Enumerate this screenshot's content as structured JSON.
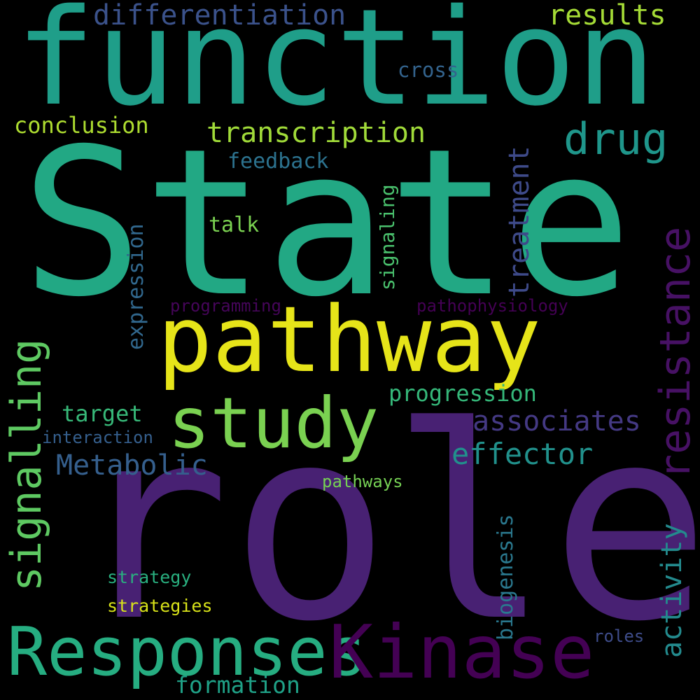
{
  "words": {
    "role": "role",
    "state": "State",
    "function": "function",
    "pathway": "pathway",
    "responses": "Responses",
    "kinase": "Kinase",
    "study": "study",
    "drug": "drug",
    "resistance": "resistance",
    "signalling": "signalling",
    "transcription": "transcription",
    "associates": "associates",
    "effector": "effector",
    "metabolic": "Metabolic",
    "differentiation": "differentiation",
    "results": "results",
    "activity": "activity",
    "treatment": "treatment",
    "formation": "formation",
    "progression": "progression",
    "conclusion": "conclusion",
    "feedback": "feedback",
    "talk": "talk",
    "cross": "cross",
    "target": "target",
    "expression": "expression",
    "biogenesis": "biogenesis",
    "signaling": "signaling",
    "programming": "programming",
    "pathophysiology": "pathophysiology",
    "interaction": "interaction",
    "pathways": "pathways",
    "strategy": "strategy",
    "strategies": "strategies",
    "roles": "roles"
  },
  "colors": {
    "background": "#000000",
    "role": "#482173",
    "state": "#22a884",
    "function": "#1f9e89",
    "pathway": "#e6e419",
    "responses": "#26ad81",
    "kinase": "#440154",
    "study": "#7ad151",
    "drug": "#1f968b",
    "resistance": "#471164",
    "signalling": "#5ec962",
    "transcription": "#a0da39",
    "associates": "#443983",
    "effector": "#21918c",
    "metabolic": "#355f8d",
    "differentiation": "#3b528b",
    "results": "#a5db36",
    "activity": "#238a8d",
    "treatment": "#3e4a89",
    "formation": "#1fa187",
    "progression": "#35b779",
    "conclusion": "#addc30",
    "feedback": "#2c728e",
    "talk": "#7ad151",
    "cross": "#33638d",
    "target": "#37b878",
    "expression": "#31688e",
    "biogenesis": "#2a788e",
    "signaling": "#4ac16d",
    "programming": "#450559",
    "pathophysiology": "#440154",
    "interaction": "#355f8d",
    "pathways": "#75d054",
    "strategy": "#29af7f",
    "strategies": "#d8e219",
    "roles": "#3e4c8a"
  }
}
